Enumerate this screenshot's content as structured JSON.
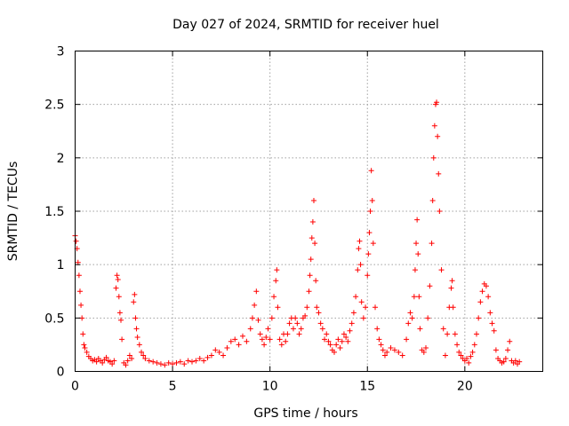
{
  "chart_data": {
    "type": "scatter",
    "title": "Day 027 of 2024, SRMTID for receiver huel",
    "xlabel": "GPS time / hours",
    "ylabel": "SRMTID / TECUs",
    "xlim": [
      0,
      24
    ],
    "ylim": [
      0,
      3
    ],
    "xticks": [
      0,
      5,
      10,
      15,
      20
    ],
    "xtick_labels": [
      "0",
      "5",
      "10",
      "15",
      "20"
    ],
    "yticks": [
      0,
      0.5,
      1,
      1.5,
      2,
      2.5,
      3
    ],
    "ytick_labels": [
      "0",
      "0.5",
      "1",
      "1.5",
      "2",
      "2.5",
      "3"
    ],
    "grid": true,
    "marker": "+",
    "color": "#ff0000",
    "series": [
      {
        "name": "SRMTID",
        "points": [
          [
            0.0,
            1.27
          ],
          [
            0.05,
            1.22
          ],
          [
            0.1,
            1.15
          ],
          [
            0.15,
            1.02
          ],
          [
            0.2,
            0.9
          ],
          [
            0.25,
            0.75
          ],
          [
            0.3,
            0.62
          ],
          [
            0.35,
            0.5
          ],
          [
            0.4,
            0.35
          ],
          [
            0.45,
            0.25
          ],
          [
            0.5,
            0.22
          ],
          [
            0.6,
            0.18
          ],
          [
            0.7,
            0.14
          ],
          [
            0.8,
            0.12
          ],
          [
            0.9,
            0.1
          ],
          [
            1.0,
            0.11
          ],
          [
            1.1,
            0.09
          ],
          [
            1.2,
            0.12
          ],
          [
            1.3,
            0.1
          ],
          [
            1.4,
            0.08
          ],
          [
            1.5,
            0.11
          ],
          [
            1.6,
            0.13
          ],
          [
            1.7,
            0.1
          ],
          [
            1.8,
            0.09
          ],
          [
            1.9,
            0.07
          ],
          [
            2.0,
            0.1
          ],
          [
            2.1,
            0.78
          ],
          [
            2.15,
            0.9
          ],
          [
            2.2,
            0.86
          ],
          [
            2.25,
            0.7
          ],
          [
            2.3,
            0.55
          ],
          [
            2.35,
            0.48
          ],
          [
            2.4,
            0.3
          ],
          [
            2.5,
            0.08
          ],
          [
            2.6,
            0.06
          ],
          [
            2.7,
            0.1
          ],
          [
            2.8,
            0.15
          ],
          [
            2.9,
            0.12
          ],
          [
            3.0,
            0.65
          ],
          [
            3.05,
            0.72
          ],
          [
            3.1,
            0.5
          ],
          [
            3.15,
            0.4
          ],
          [
            3.2,
            0.32
          ],
          [
            3.3,
            0.25
          ],
          [
            3.4,
            0.18
          ],
          [
            3.5,
            0.15
          ],
          [
            3.6,
            0.12
          ],
          [
            3.8,
            0.1
          ],
          [
            4.0,
            0.09
          ],
          [
            4.2,
            0.08
          ],
          [
            4.4,
            0.07
          ],
          [
            4.6,
            0.06
          ],
          [
            4.8,
            0.08
          ],
          [
            5.0,
            0.07
          ],
          [
            5.2,
            0.08
          ],
          [
            5.4,
            0.09
          ],
          [
            5.6,
            0.07
          ],
          [
            5.8,
            0.1
          ],
          [
            6.0,
            0.09
          ],
          [
            6.2,
            0.1
          ],
          [
            6.4,
            0.12
          ],
          [
            6.6,
            0.1
          ],
          [
            6.8,
            0.13
          ],
          [
            7.0,
            0.15
          ],
          [
            7.2,
            0.2
          ],
          [
            7.4,
            0.18
          ],
          [
            7.6,
            0.15
          ],
          [
            7.8,
            0.22
          ],
          [
            8.0,
            0.28
          ],
          [
            8.2,
            0.3
          ],
          [
            8.4,
            0.25
          ],
          [
            8.6,
            0.33
          ],
          [
            8.8,
            0.28
          ],
          [
            9.0,
            0.4
          ],
          [
            9.1,
            0.5
          ],
          [
            9.2,
            0.62
          ],
          [
            9.3,
            0.75
          ],
          [
            9.4,
            0.48
          ],
          [
            9.5,
            0.35
          ],
          [
            9.6,
            0.3
          ],
          [
            9.7,
            0.25
          ],
          [
            9.8,
            0.32
          ],
          [
            9.9,
            0.4
          ],
          [
            10.0,
            0.3
          ],
          [
            10.1,
            0.5
          ],
          [
            10.2,
            0.7
          ],
          [
            10.3,
            0.85
          ],
          [
            10.35,
            0.95
          ],
          [
            10.4,
            0.6
          ],
          [
            10.5,
            0.3
          ],
          [
            10.6,
            0.25
          ],
          [
            10.7,
            0.35
          ],
          [
            10.8,
            0.28
          ],
          [
            10.9,
            0.35
          ],
          [
            11.0,
            0.45
          ],
          [
            11.1,
            0.5
          ],
          [
            11.2,
            0.4
          ],
          [
            11.3,
            0.5
          ],
          [
            11.4,
            0.45
          ],
          [
            11.5,
            0.35
          ],
          [
            11.6,
            0.4
          ],
          [
            11.7,
            0.5
          ],
          [
            11.8,
            0.52
          ],
          [
            11.9,
            0.6
          ],
          [
            12.0,
            0.75
          ],
          [
            12.05,
            0.9
          ],
          [
            12.1,
            1.05
          ],
          [
            12.15,
            1.25
          ],
          [
            12.2,
            1.4
          ],
          [
            12.25,
            1.6
          ],
          [
            12.3,
            1.2
          ],
          [
            12.35,
            0.85
          ],
          [
            12.4,
            0.6
          ],
          [
            12.5,
            0.55
          ],
          [
            12.6,
            0.45
          ],
          [
            12.7,
            0.4
          ],
          [
            12.8,
            0.3
          ],
          [
            12.9,
            0.35
          ],
          [
            13.0,
            0.28
          ],
          [
            13.1,
            0.25
          ],
          [
            13.2,
            0.2
          ],
          [
            13.3,
            0.18
          ],
          [
            13.4,
            0.25
          ],
          [
            13.5,
            0.3
          ],
          [
            13.6,
            0.22
          ],
          [
            13.7,
            0.28
          ],
          [
            13.8,
            0.35
          ],
          [
            13.9,
            0.32
          ],
          [
            14.0,
            0.28
          ],
          [
            14.1,
            0.38
          ],
          [
            14.2,
            0.45
          ],
          [
            14.3,
            0.55
          ],
          [
            14.4,
            0.7
          ],
          [
            14.5,
            0.95
          ],
          [
            14.55,
            1.15
          ],
          [
            14.6,
            1.22
          ],
          [
            14.65,
            1.0
          ],
          [
            14.7,
            0.65
          ],
          [
            14.8,
            0.5
          ],
          [
            14.9,
            0.6
          ],
          [
            15.0,
            0.9
          ],
          [
            15.05,
            1.1
          ],
          [
            15.1,
            1.3
          ],
          [
            15.15,
            1.5
          ],
          [
            15.2,
            1.88
          ],
          [
            15.25,
            1.6
          ],
          [
            15.3,
            1.2
          ],
          [
            15.4,
            0.6
          ],
          [
            15.5,
            0.4
          ],
          [
            15.6,
            0.3
          ],
          [
            15.7,
            0.25
          ],
          [
            15.8,
            0.2
          ],
          [
            15.9,
            0.15
          ],
          [
            16.0,
            0.18
          ],
          [
            16.2,
            0.22
          ],
          [
            16.4,
            0.2
          ],
          [
            16.6,
            0.18
          ],
          [
            16.8,
            0.15
          ],
          [
            17.0,
            0.3
          ],
          [
            17.1,
            0.45
          ],
          [
            17.2,
            0.55
          ],
          [
            17.3,
            0.5
          ],
          [
            17.4,
            0.7
          ],
          [
            17.45,
            0.95
          ],
          [
            17.5,
            1.2
          ],
          [
            17.55,
            1.42
          ],
          [
            17.6,
            1.1
          ],
          [
            17.65,
            0.7
          ],
          [
            17.7,
            0.4
          ],
          [
            17.8,
            0.2
          ],
          [
            17.9,
            0.18
          ],
          [
            18.0,
            0.22
          ],
          [
            18.1,
            0.5
          ],
          [
            18.2,
            0.8
          ],
          [
            18.3,
            1.2
          ],
          [
            18.35,
            1.6
          ],
          [
            18.4,
            2.0
          ],
          [
            18.45,
            2.3
          ],
          [
            18.5,
            2.5
          ],
          [
            18.55,
            2.52
          ],
          [
            18.6,
            2.2
          ],
          [
            18.65,
            1.85
          ],
          [
            18.7,
            1.5
          ],
          [
            18.8,
            0.95
          ],
          [
            18.9,
            0.4
          ],
          [
            19.0,
            0.15
          ],
          [
            19.1,
            0.35
          ],
          [
            19.2,
            0.6
          ],
          [
            19.3,
            0.78
          ],
          [
            19.35,
            0.85
          ],
          [
            19.4,
            0.6
          ],
          [
            19.5,
            0.35
          ],
          [
            19.6,
            0.25
          ],
          [
            19.7,
            0.18
          ],
          [
            19.8,
            0.15
          ],
          [
            19.9,
            0.12
          ],
          [
            20.0,
            0.1
          ],
          [
            20.1,
            0.12
          ],
          [
            20.2,
            0.08
          ],
          [
            20.3,
            0.14
          ],
          [
            20.4,
            0.18
          ],
          [
            20.5,
            0.25
          ],
          [
            20.6,
            0.35
          ],
          [
            20.7,
            0.5
          ],
          [
            20.8,
            0.65
          ],
          [
            20.9,
            0.75
          ],
          [
            21.0,
            0.82
          ],
          [
            21.1,
            0.8
          ],
          [
            21.2,
            0.7
          ],
          [
            21.3,
            0.55
          ],
          [
            21.4,
            0.45
          ],
          [
            21.5,
            0.38
          ],
          [
            21.6,
            0.2
          ],
          [
            21.7,
            0.12
          ],
          [
            21.8,
            0.1
          ],
          [
            21.9,
            0.08
          ],
          [
            22.0,
            0.09
          ],
          [
            22.1,
            0.12
          ],
          [
            22.2,
            0.2
          ],
          [
            22.3,
            0.28
          ],
          [
            22.4,
            0.1
          ],
          [
            22.5,
            0.08
          ],
          [
            22.6,
            0.1
          ],
          [
            22.7,
            0.07
          ],
          [
            22.8,
            0.09
          ]
        ]
      }
    ]
  }
}
